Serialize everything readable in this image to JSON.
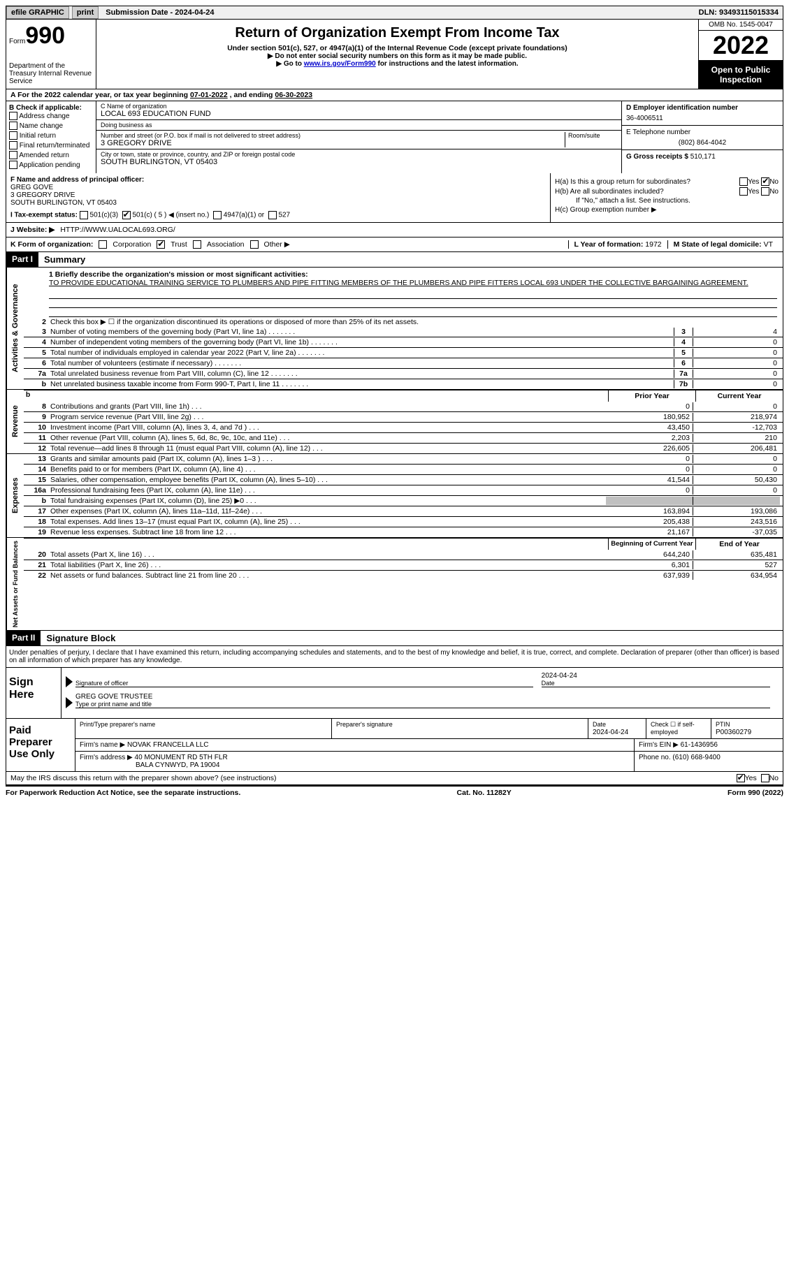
{
  "topbar": {
    "efile": "efile GRAPHIC",
    "print": "print",
    "sub_date_label": "Submission Date - 2024-04-24",
    "dln": "DLN: 93493115015334"
  },
  "header": {
    "form_label": "Form",
    "form_num": "990",
    "dept": "Department of the Treasury Internal Revenue Service",
    "title": "Return of Organization Exempt From Income Tax",
    "sub": "Under section 501(c), 527, or 4947(a)(1) of the Internal Revenue Code (except private foundations)",
    "note1": "▶ Do not enter social security numbers on this form as it may be made public.",
    "note2_pre": "▶ Go to ",
    "note2_link": "www.irs.gov/Form990",
    "note2_post": " for instructions and the latest information.",
    "omb": "OMB No. 1545-0047",
    "year": "2022",
    "open": "Open to Public Inspection"
  },
  "a": {
    "text_pre": "A For the 2022 calendar year, or tax year beginning ",
    "begin": "07-01-2022",
    "mid": "   , and ending ",
    "end": "06-30-2023"
  },
  "b": {
    "label": "B Check if applicable:",
    "opts": [
      "Address change",
      "Name change",
      "Initial return",
      "Final return/terminated",
      "Amended return",
      "Application pending"
    ]
  },
  "c": {
    "name_label": "C Name of organization",
    "name": "LOCAL 693 EDUCATION FUND",
    "dba_label": "Doing business as",
    "dba": "",
    "addr_label": "Number and street (or P.O. box if mail is not delivered to street address)",
    "room_label": "Room/suite",
    "addr": "3 GREGORY DRIVE",
    "city_label": "City or town, state or province, country, and ZIP or foreign postal code",
    "city": "SOUTH BURLINGTON, VT  05403"
  },
  "d": {
    "ein_label": "D Employer identification number",
    "ein": "36-4006511",
    "tel_label": "E Telephone number",
    "tel": "(802) 864-4042",
    "gross_label": "G Gross receipts $",
    "gross": "510,171"
  },
  "f": {
    "label": "F Name and address of principal officer:",
    "name": "GREG GOVE",
    "addr1": "3 GREGORY DRIVE",
    "addr2": "SOUTH BURLINGTON, VT  05403"
  },
  "h": {
    "a_label": "H(a)  Is this a group return for subordinates?",
    "a_yes": "Yes",
    "a_no": "No",
    "b_label": "H(b)  Are all subordinates included?",
    "b_note": "If \"No,\" attach a list. See instructions.",
    "c_label": "H(c)  Group exemption number ▶"
  },
  "i": {
    "label": "I  Tax-exempt status:",
    "o1": "501(c)(3)",
    "o2": "501(c) ( 5 ) ◀ (insert no.)",
    "o3": "4947(a)(1) or",
    "o4": "527"
  },
  "j": {
    "label": "J  Website: ▶",
    "val": "HTTP://WWW.UALOCAL693.ORG/"
  },
  "k": {
    "label": "K Form of organization:",
    "o1": "Corporation",
    "o2": "Trust",
    "o3": "Association",
    "o4": "Other ▶",
    "l_label": "L Year of formation:",
    "l_val": "1972",
    "m_label": "M State of legal domicile:",
    "m_val": "VT"
  },
  "part1": {
    "tag": "Part I",
    "title": "Summary",
    "q1_label": "1  Briefly describe the organization's mission or most significant activities:",
    "q1_text": "TO PROVIDE EDUCATIONAL TRAINING SERVICE TO PLUMBERS AND PIPE FITTING MEMBERS OF THE PLUMBERS AND PIPE FITTERS LOCAL 693 UNDER THE COLLECTIVE BARGAINING AGREEMENT.",
    "q2": "Check this box ▶ ☐ if the organization discontinued its operations or disposed of more than 25% of its net assets.",
    "tabs": {
      "ag": "Activities & Governance",
      "rev": "Revenue",
      "exp": "Expenses",
      "na": "Net Assets or Fund Balances"
    },
    "lines_ag": [
      {
        "n": "3",
        "d": "Number of voting members of the governing body (Part VI, line 1a)",
        "box": "3",
        "v": "4"
      },
      {
        "n": "4",
        "d": "Number of independent voting members of the governing body (Part VI, line 1b)",
        "box": "4",
        "v": "0"
      },
      {
        "n": "5",
        "d": "Total number of individuals employed in calendar year 2022 (Part V, line 2a)",
        "box": "5",
        "v": "0"
      },
      {
        "n": "6",
        "d": "Total number of volunteers (estimate if necessary)",
        "box": "6",
        "v": "0"
      },
      {
        "n": "7a",
        "d": "Total unrelated business revenue from Part VIII, column (C), line 12",
        "box": "7a",
        "v": "0"
      },
      {
        "n": "b",
        "d": "Net unrelated business taxable income from Form 990-T, Part I, line 11",
        "box": "7b",
        "v": "0"
      }
    ],
    "hdr_prior": "Prior Year",
    "hdr_curr": "Current Year",
    "lines_rev": [
      {
        "n": "8",
        "d": "Contributions and grants (Part VIII, line 1h)",
        "p": "0",
        "c": "0"
      },
      {
        "n": "9",
        "d": "Program service revenue (Part VIII, line 2g)",
        "p": "180,952",
        "c": "218,974"
      },
      {
        "n": "10",
        "d": "Investment income (Part VIII, column (A), lines 3, 4, and 7d )",
        "p": "43,450",
        "c": "-12,703"
      },
      {
        "n": "11",
        "d": "Other revenue (Part VIII, column (A), lines 5, 6d, 8c, 9c, 10c, and 11e)",
        "p": "2,203",
        "c": "210"
      },
      {
        "n": "12",
        "d": "Total revenue—add lines 8 through 11 (must equal Part VIII, column (A), line 12)",
        "p": "226,605",
        "c": "206,481"
      }
    ],
    "lines_exp": [
      {
        "n": "13",
        "d": "Grants and similar amounts paid (Part IX, column (A), lines 1–3 )",
        "p": "0",
        "c": "0"
      },
      {
        "n": "14",
        "d": "Benefits paid to or for members (Part IX, column (A), line 4)",
        "p": "0",
        "c": "0"
      },
      {
        "n": "15",
        "d": "Salaries, other compensation, employee benefits (Part IX, column (A), lines 5–10)",
        "p": "41,544",
        "c": "50,430"
      },
      {
        "n": "16a",
        "d": "Professional fundraising fees (Part IX, column (A), line 11e)",
        "p": "0",
        "c": "0"
      },
      {
        "n": "b",
        "d": "Total fundraising expenses (Part IX, column (D), line 25) ▶0",
        "p": "",
        "c": "",
        "shaded": true
      },
      {
        "n": "17",
        "d": "Other expenses (Part IX, column (A), lines 11a–11d, 11f–24e)",
        "p": "163,894",
        "c": "193,086"
      },
      {
        "n": "18",
        "d": "Total expenses. Add lines 13–17 (must equal Part IX, column (A), line 25)",
        "p": "205,438",
        "c": "243,516"
      },
      {
        "n": "19",
        "d": "Revenue less expenses. Subtract line 18 from line 12",
        "p": "21,167",
        "c": "-37,035"
      }
    ],
    "hdr_begin": "Beginning of Current Year",
    "hdr_end": "End of Year",
    "lines_na": [
      {
        "n": "20",
        "d": "Total assets (Part X, line 16)",
        "p": "644,240",
        "c": "635,481"
      },
      {
        "n": "21",
        "d": "Total liabilities (Part X, line 26)",
        "p": "6,301",
        "c": "527"
      },
      {
        "n": "22",
        "d": "Net assets or fund balances. Subtract line 21 from line 20",
        "p": "637,939",
        "c": "634,954"
      }
    ]
  },
  "part2": {
    "tag": "Part II",
    "title": "Signature Block",
    "intro": "Under penalties of perjury, I declare that I have examined this return, including accompanying schedules and statements, and to the best of my knowledge and belief, it is true, correct, and complete. Declaration of preparer (other than officer) is based on all information of which preparer has any knowledge.",
    "sign_here": "Sign Here",
    "sig_officer": "Signature of officer",
    "sig_date": "2024-04-24",
    "date_lbl": "Date",
    "officer_name": "GREG GOVE TRUSTEE",
    "type_name": "Type or print name and title"
  },
  "prep": {
    "label": "Paid Preparer Use Only",
    "h1": "Print/Type preparer's name",
    "h2": "Preparer's signature",
    "h3_lbl": "Date",
    "h3": "2024-04-24",
    "h4": "Check ☐ if self-employed",
    "h5_lbl": "PTIN",
    "h5": "P00360279",
    "firm_name_lbl": "Firm's name    ▶",
    "firm_name": "NOVAK FRANCELLA LLC",
    "firm_ein_lbl": "Firm's EIN ▶",
    "firm_ein": "61-1436956",
    "firm_addr_lbl": "Firm's address ▶",
    "firm_addr1": "40 MONUMENT RD 5TH FLR",
    "firm_addr2": "BALA CYNWYD, PA  19004",
    "phone_lbl": "Phone no.",
    "phone": "(610) 668-9400"
  },
  "footer": {
    "q": "May the IRS discuss this return with the preparer shown above? (see instructions)",
    "yes": "Yes",
    "no": "No",
    "pra": "For Paperwork Reduction Act Notice, see the separate instructions.",
    "cat": "Cat. No. 11282Y",
    "form": "Form 990 (2022)"
  }
}
